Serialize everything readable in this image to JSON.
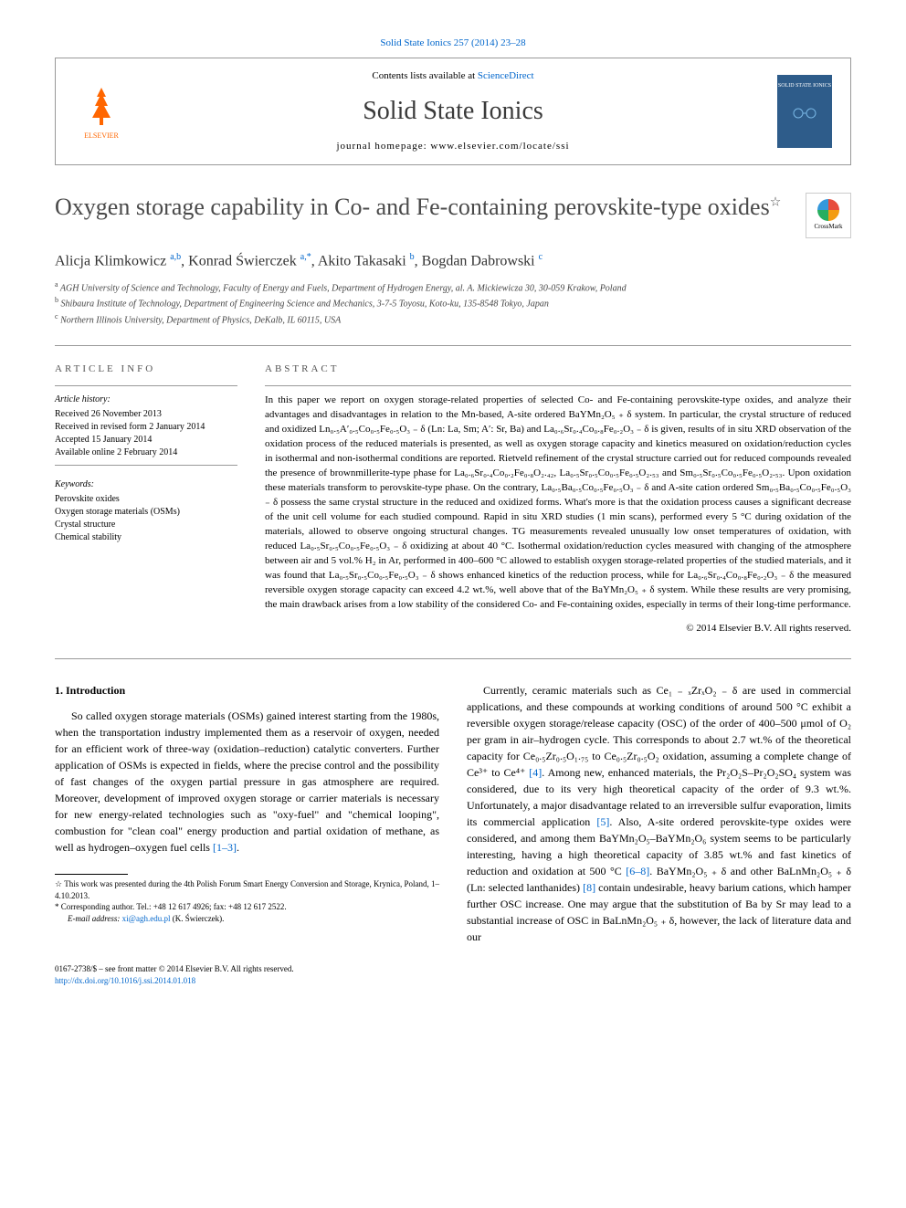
{
  "top_link": "Solid State Ionics 257 (2014) 23–28",
  "header": {
    "contents_prefix": "Contents lists available at ",
    "contents_link": "ScienceDirect",
    "journal_name": "Solid State Ionics",
    "homepage": "journal homepage: www.elsevier.com/locate/ssi",
    "elsevier_label": "ELSEVIER",
    "cover_title": "SOLID STATE IONICS"
  },
  "article": {
    "title": "Oxygen storage capability in Co- and Fe-containing perovskite-type oxides",
    "star_symbol": "☆",
    "crossmark_label": "CrossMark"
  },
  "authors": [
    {
      "name": "Alicja Klimkowicz",
      "sup": "a,b"
    },
    {
      "name": "Konrad Świerczek",
      "sup": "a,*"
    },
    {
      "name": "Akito Takasaki",
      "sup": "b"
    },
    {
      "name": "Bogdan Dabrowski",
      "sup": "c"
    }
  ],
  "affiliations": [
    {
      "sup": "a",
      "text": "AGH University of Science and Technology, Faculty of Energy and Fuels, Department of Hydrogen Energy, al. A. Mickiewicza 30, 30-059 Krakow, Poland"
    },
    {
      "sup": "b",
      "text": "Shibaura Institute of Technology, Department of Engineering Science and Mechanics, 3-7-5 Toyosu, Koto-ku, 135-8548 Tokyo, Japan"
    },
    {
      "sup": "c",
      "text": "Northern Illinois University, Department of Physics, DeKalb, IL 60115, USA"
    }
  ],
  "article_info": {
    "heading": "ARTICLE INFO",
    "history_label": "Article history:",
    "history": [
      "Received 26 November 2013",
      "Received in revised form 2 January 2014",
      "Accepted 15 January 2014",
      "Available online 2 February 2014"
    ],
    "keywords_label": "Keywords:",
    "keywords": [
      "Perovskite oxides",
      "Oxygen storage materials (OSMs)",
      "Crystal structure",
      "Chemical stability"
    ]
  },
  "abstract": {
    "heading": "ABSTRACT",
    "text": "In this paper we report on oxygen storage-related properties of selected Co- and Fe-containing perovskite-type oxides, and analyze their advantages and disadvantages in relation to the Mn-based, A-site ordered BaYMn₂O₅ ₊ δ system. In particular, the crystal structure of reduced and oxidized Ln₀.₅A′₀.₅Co₀.₅Fe₀.₅O₃ ₋ δ (Ln: La, Sm; A′: Sr, Ba) and La₀.₆Sr₀.₄Co₀.₈Fe₀.₂O₃ ₋ δ is given, results of in situ XRD observation of the oxidation process of the reduced materials is presented, as well as oxygen storage capacity and kinetics measured on oxidation/reduction cycles in isothermal and non-isothermal conditions are reported. Rietveld refinement of the crystal structure carried out for reduced compounds revealed the presence of brownmillerite-type phase for La₀.₆Sr₀.₄Co₀.₂Fe₀.₈O₂.₄₂, La₀.₅Sr₀.₅Co₀.₅Fe₀.₅O₂.₅₃ and Sm₀.₅Sr₀.₅Co₀.₅Fe₀.₅O₂.₅₃. Upon oxidation these materials transform to perovskite-type phase. On the contrary, La₀.₅Ba₀.₅Co₀.₅Fe₀.₅O₃ ₋ δ and A-site cation ordered Sm₀.₅Ba₀.₅Co₀.₅Fe₀.₅O₃ ₋ δ possess the same crystal structure in the reduced and oxidized forms. What's more is that the oxidation process causes a significant decrease of the unit cell volume for each studied compound. Rapid in situ XRD studies (1 min scans), performed every 5 °C during oxidation of the materials, allowed to observe ongoing structural changes. TG measurements revealed unusually low onset temperatures of oxidation, with reduced La₀.₅Sr₀.₅Co₀.₅Fe₀.₅O₃ ₋ δ oxidizing at about 40 °C. Isothermal oxidation/reduction cycles measured with changing of the atmosphere between air and 5 vol.% H₂ in Ar, performed in 400–600 °C allowed to establish oxygen storage-related properties of the studied materials, and it was found that La₀.₅Sr₀.₅Co₀.₅Fe₀.₅O₃ ₋ δ shows enhanced kinetics of the reduction process, while for La₀.₆Sr₀.₄Co₀.₈Fe₀.₂O₃ ₋ δ the measured reversible oxygen storage capacity can exceed 4.2 wt.%, well above that of the BaYMn₂O₅ ₊ δ system. While these results are very promising, the main drawback arises from a low stability of the considered Co- and Fe-containing oxides, especially in terms of their long-time performance.",
    "copyright": "© 2014 Elsevier B.V. All rights reserved."
  },
  "body": {
    "section_heading": "1. Introduction",
    "col1_p1": "So called oxygen storage materials (OSMs) gained interest starting from the 1980s, when the transportation industry implemented them as a reservoir of oxygen, needed for an efficient work of three-way (oxidation–reduction) catalytic converters. Further application of OSMs is expected in fields, where the precise control and the possibility of fast changes of the oxygen partial pressure in gas atmosphere are required. Moreover, development of improved oxygen storage or carrier materials is necessary for new energy-related technologies such as \"oxy-fuel\" and \"chemical looping\", combustion for \"clean coal\" energy production and partial oxidation of methane, as well as hydrogen–oxygen fuel cells ",
    "col1_ref1": "[1–3]",
    "col1_p1_end": ".",
    "col2_p1": "Currently, ceramic materials such as Ce₁ ₋ ₓZrₓO₂ ₋ δ are used in commercial applications, and these compounds at working conditions of around 500 °C exhibit a reversible oxygen storage/release capacity (OSC) of the order of 400–500 μmol of O₂ per gram in air–hydrogen cycle. This corresponds to about 2.7 wt.% of the theoretical capacity for Ce₀.₅Zr₀.₅O₁.₇₅ to Ce₀.₅Zr₀.₅O₂ oxidation, assuming a complete change of Ce³⁺ to Ce⁴⁺ ",
    "col2_ref1": "[4]",
    "col2_p1b": ". Among new, enhanced materials, the Pr₂O₂S–Pr₂O₂SO₄ system was considered, due to its very high theoretical capacity of the order of 9.3 wt.%. Unfortunately, a major disadvantage related to an irreversible sulfur evaporation, limits its commercial application ",
    "col2_ref2": "[5]",
    "col2_p1c": ". Also, A-site ordered perovskite-type oxides were considered, and among them BaYMn₂O₅–BaYMn₂O₆ system seems to be particularly interesting, having a high theoretical capacity of 3.85 wt.% and fast kinetics of reduction and oxidation at 500 °C ",
    "col2_ref3": "[6–8]",
    "col2_p1d": ". BaYMn₂O₅ ₊ δ and other BaLnMn₂O₅ ₊ δ (Ln: selected lanthanides) ",
    "col2_ref4": "[8]",
    "col2_p1e": " contain undesirable, heavy barium cations, which hamper further OSC increase. One may argue that the substitution of Ba by Sr may lead to a substantial increase of OSC in BaLnMn₂O₅ ₊ δ, however, the lack of literature data and our"
  },
  "footnotes": {
    "presentation": "This work was presented during the 4th Polish Forum Smart Energy Conversion and Storage, Krynica, Poland, 1–4.10.2013.",
    "corresponding": "Corresponding author. Tel.: +48 12 617 4926; fax: +48 12 617 2522.",
    "email_label": "E-mail address: ",
    "email": "xi@agh.edu.pl",
    "email_suffix": " (K. Świerczek)."
  },
  "footer": {
    "line1": "0167-2738/$ – see front matter © 2014 Elsevier B.V. All rights reserved.",
    "doi": "http://dx.doi.org/10.1016/j.ssi.2014.01.018"
  },
  "colors": {
    "link": "#0066cc",
    "elsevier_orange": "#ff6600",
    "cover_bg": "#2e5c8a",
    "text_gray": "#4a4a4a"
  }
}
